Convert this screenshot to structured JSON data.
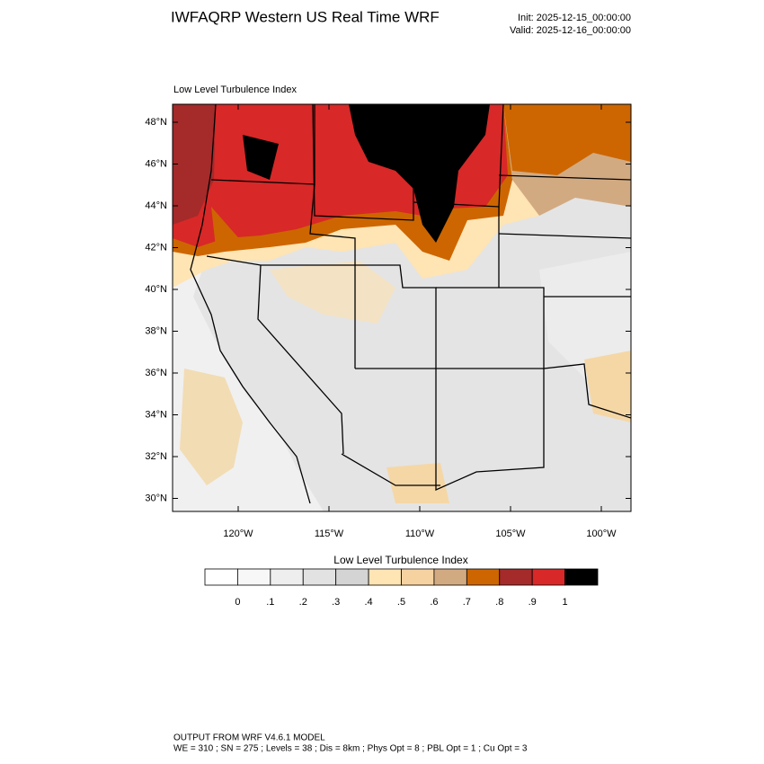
{
  "header": {
    "title": "IWFAQRP Western US Real Time WRF",
    "init": "Init: 2025-12-15_00:00:00",
    "valid": "Valid: 2025-12-16_00:00:00"
  },
  "map": {
    "title": "Low Level Turbulence Index",
    "lat_labels": [
      "48°N",
      "46°N",
      "44°N",
      "42°N",
      "40°N",
      "38°N",
      "36°N",
      "34°N",
      "32°N",
      "30°N"
    ],
    "lon_labels": [
      "120°W",
      "115°W",
      "110°W",
      "105°W",
      "100°W"
    ]
  },
  "colorbar": {
    "title": "Low Level Turbulence Index",
    "colors": [
      "#ffffff",
      "#f7f7f7",
      "#eeeeee",
      "#e2e2e2",
      "#d4d4d4",
      "#ffe4b4",
      "#f5d2a0",
      "#d2aa82",
      "#cd6600",
      "#a52a2a",
      "#d82828",
      "#000000"
    ],
    "labels": [
      "0",
      ".1",
      ".2",
      ".3",
      ".4",
      ".5",
      ".6",
      ".7",
      ".8",
      ".9",
      "1"
    ]
  },
  "footer": {
    "line1": "OUTPUT FROM WRF V4.6.1 MODEL",
    "line2": "WE = 310 ; SN = 275 ; Levels = 38 ; Dis = 8km ; Phys Opt = 8 ; PBL Opt = 1 ; Cu Opt = 3"
  }
}
